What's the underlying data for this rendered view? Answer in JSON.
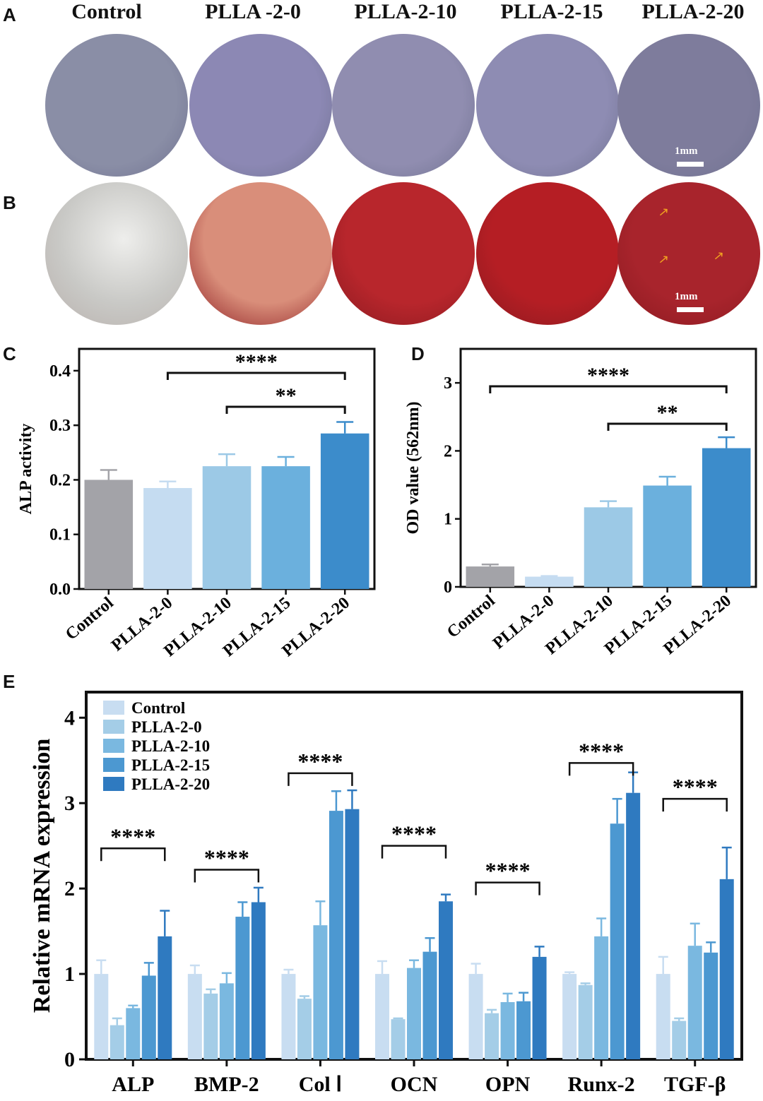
{
  "panels": {
    "a": "A",
    "b": "B",
    "c": "C",
    "d": "D",
    "e": "E"
  },
  "groups": [
    "Control",
    "PLLA -2-0",
    "PLLA-2-10",
    "PLLA-2-15",
    "PLLA-2-20"
  ],
  "scale_bar_label": "1mm",
  "plate_colors": {
    "row_a": [
      "#8a8ea6",
      "#8c88b4",
      "#908db0",
      "#8e8cb3",
      "#7e7c9c"
    ],
    "row_b": [
      "#c9c9c6",
      "#d98e7a",
      "#b8262c",
      "#b51e24",
      "#a8242c"
    ]
  },
  "chart_data": [
    {
      "type": "bar",
      "panel": "C",
      "categories": [
        "Control",
        "PLLA-2-0",
        "PLLA-2-10",
        "PLLA-2-15",
        "PLLA-2-20"
      ],
      "values": [
        0.2,
        0.185,
        0.225,
        0.225,
        0.285
      ],
      "errors": [
        0.018,
        0.012,
        0.022,
        0.017,
        0.021
      ],
      "colors": [
        "#a3a3a8",
        "#c5dcf1",
        "#9cc9e6",
        "#6bb0dd",
        "#3c8ccb"
      ],
      "ylabel": "ALP activity",
      "ylim": [
        0,
        0.44
      ],
      "yticks": [
        "0.0",
        "0.1",
        "0.2",
        "0.3",
        "0.4"
      ],
      "significance": [
        {
          "from": "PLLA-2-0",
          "to": "PLLA-2-20",
          "label": "****"
        },
        {
          "from": "PLLA-2-10",
          "to": "PLLA-2-20",
          "label": "**"
        }
      ]
    },
    {
      "type": "bar",
      "panel": "D",
      "categories": [
        "Control",
        "PLLA-2-0",
        "PLLA-2-10",
        "PLLA-2-15",
        "PLLA-2-20"
      ],
      "values": [
        0.3,
        0.15,
        1.17,
        1.49,
        2.04
      ],
      "errors": [
        0.03,
        0.01,
        0.09,
        0.13,
        0.16
      ],
      "colors": [
        "#a3a3a8",
        "#c5dcf1",
        "#9cc9e6",
        "#6bb0dd",
        "#3c8ccb"
      ],
      "ylabel": "OD value (562nm)",
      "ylim": [
        0,
        3.5
      ],
      "yticks": [
        "0",
        "1",
        "2",
        "3"
      ],
      "significance": [
        {
          "from": "Control",
          "to": "PLLA-2-20",
          "label": "****"
        },
        {
          "from": "PLLA-2-10",
          "to": "PLLA-2-20",
          "label": "**"
        }
      ]
    },
    {
      "type": "bar",
      "panel": "E",
      "categories": [
        "ALP",
        "BMP-2",
        "Col Ⅰ",
        "OCN",
        "OPN",
        "Runx-2",
        "TGF-β"
      ],
      "series": [
        {
          "name": "Control",
          "color": "#c8ddf1",
          "values": [
            1.0,
            1.0,
            1.0,
            1.0,
            1.0,
            1.0,
            1.0
          ],
          "errors": [
            0.16,
            0.1,
            0.05,
            0.15,
            0.12,
            0.02,
            0.2
          ]
        },
        {
          "name": "PLLA-2-0",
          "color": "#a4cde7",
          "values": [
            0.4,
            0.77,
            0.71,
            0.47,
            0.54,
            0.87,
            0.45
          ],
          "errors": [
            0.08,
            0.05,
            0.03,
            0.01,
            0.04,
            0.02,
            0.03
          ]
        },
        {
          "name": "PLLA-2-10",
          "color": "#7ab8e0",
          "values": [
            0.6,
            0.89,
            1.57,
            1.07,
            0.67,
            1.44,
            1.33
          ],
          "errors": [
            0.03,
            0.12,
            0.28,
            0.09,
            0.1,
            0.21,
            0.26
          ]
        },
        {
          "name": "PLLA-2-15",
          "color": "#4c98d1",
          "values": [
            0.98,
            1.67,
            2.91,
            1.26,
            0.68,
            2.76,
            1.25
          ],
          "errors": [
            0.15,
            0.17,
            0.23,
            0.16,
            0.1,
            0.29,
            0.12
          ]
        },
        {
          "name": "PLLA-2-20",
          "color": "#2f7ac0",
          "values": [
            1.44,
            1.84,
            2.93,
            1.85,
            1.2,
            3.12,
            2.11
          ],
          "errors": [
            0.3,
            0.17,
            0.22,
            0.08,
            0.12,
            0.24,
            0.37
          ]
        }
      ],
      "ylabel": "Relative mRNA expression",
      "ylim": [
        0,
        4.3
      ],
      "yticks": [
        "0",
        "1",
        "2",
        "3",
        "4"
      ],
      "significance": [
        {
          "category": "ALP",
          "label": "****",
          "level": 2.47
        },
        {
          "category": "BMP-2",
          "label": "****",
          "level": 2.22
        },
        {
          "category": "Col Ⅰ",
          "label": "****",
          "level": 3.35
        },
        {
          "category": "OCN",
          "label": "****",
          "level": 2.5
        },
        {
          "category": "OPN",
          "label": "****",
          "level": 2.07
        },
        {
          "category": "Runx-2",
          "label": "****",
          "level": 3.47
        },
        {
          "category": "TGF-β",
          "label": "****",
          "level": 3.05
        }
      ],
      "legend_position": "top-left"
    }
  ]
}
